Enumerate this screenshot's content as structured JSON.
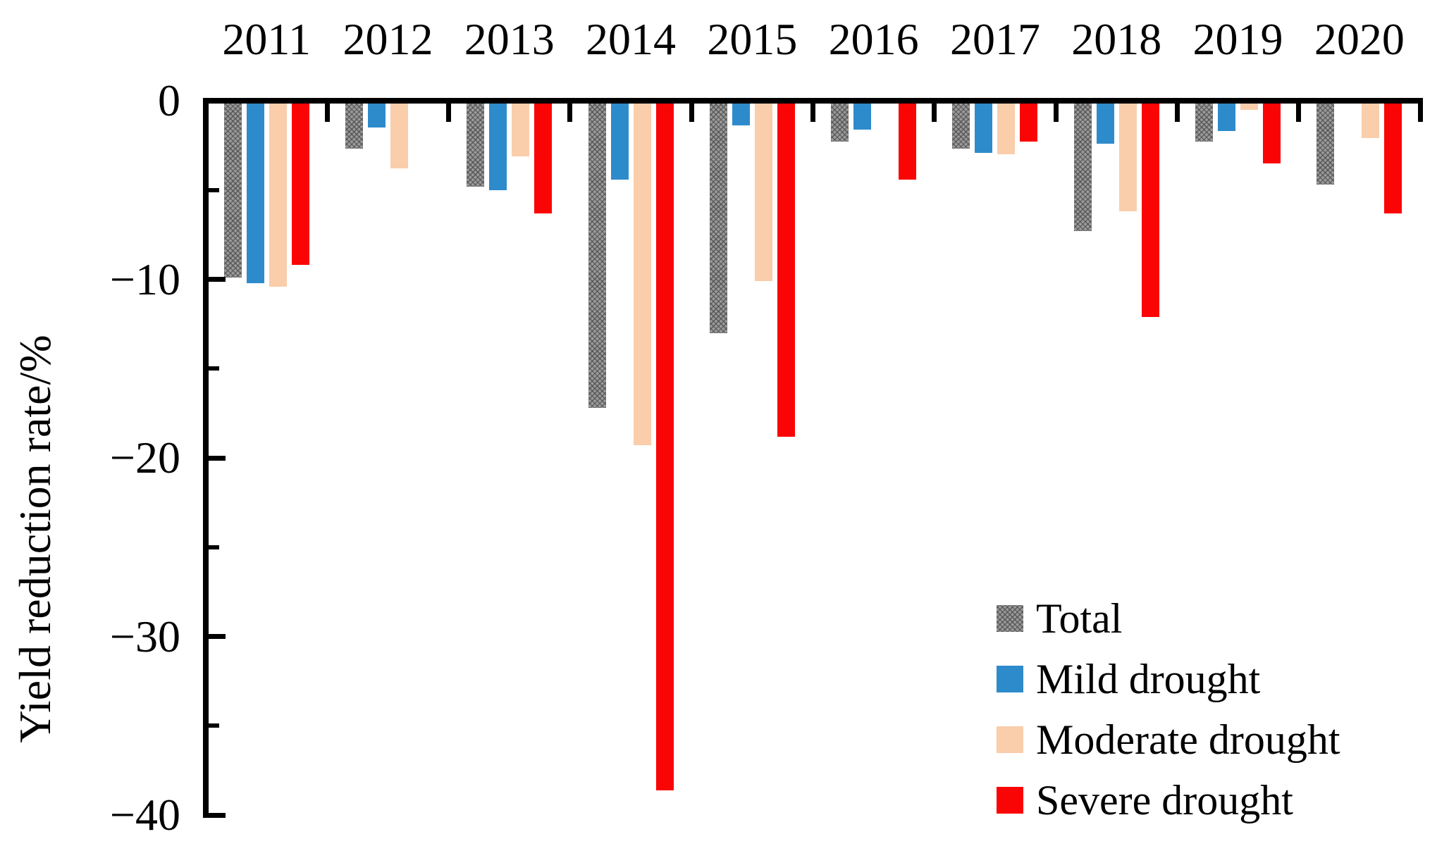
{
  "background": "#ffffff",
  "axis_color": "#000000",
  "chart_data": {
    "type": "bar",
    "title": "",
    "xlabel": "",
    "ylabel": "Yield reduction rate/%",
    "categories": [
      "2011",
      "2012",
      "2013",
      "2014",
      "2015",
      "2016",
      "2017",
      "2018",
      "2019",
      "2020"
    ],
    "series": [
      {
        "name": "Total",
        "color": "#9b9b9b",
        "pattern": "crosshatch",
        "values": [
          -9.9,
          -2.7,
          -4.8,
          -17.2,
          -13.0,
          -2.3,
          -2.7,
          -7.3,
          -2.3,
          -4.7
        ]
      },
      {
        "name": "Mild drought",
        "color": "#2e8bcb",
        "pattern": "solid",
        "values": [
          -10.2,
          -1.5,
          -5.0,
          -4.4,
          -1.4,
          -1.6,
          -2.9,
          -2.4,
          -1.7,
          0
        ]
      },
      {
        "name": "Moderate drought",
        "color": "#facdab",
        "pattern": "solid",
        "values": [
          -10.4,
          -3.8,
          -3.1,
          -19.3,
          -10.1,
          0,
          -3.0,
          -6.2,
          -0.5,
          -2.1
        ]
      },
      {
        "name": "Severe drought",
        "color": "#fa0505",
        "pattern": "solid",
        "values": [
          -9.2,
          0,
          -6.3,
          -38.6,
          -18.8,
          -4.4,
          -2.3,
          -12.1,
          -3.5,
          -6.3
        ]
      }
    ],
    "y_axis": {
      "ylim": [
        -40,
        0
      ],
      "major_ticks": [
        0,
        -10,
        -20,
        -30,
        -40
      ],
      "major_tick_labels": [
        "0",
        "−10",
        "−20",
        "−30",
        "−40"
      ],
      "minor_ticks": [
        -5,
        -15,
        -25,
        -35
      ],
      "ticks_direction": "in"
    },
    "x_axis": {
      "position": "top",
      "ticks_direction": "in"
    },
    "grid": false,
    "legend": {
      "position": "lower-right",
      "entries": [
        "Total",
        "Mild drought",
        "Moderate drought",
        "Severe drought"
      ]
    }
  }
}
